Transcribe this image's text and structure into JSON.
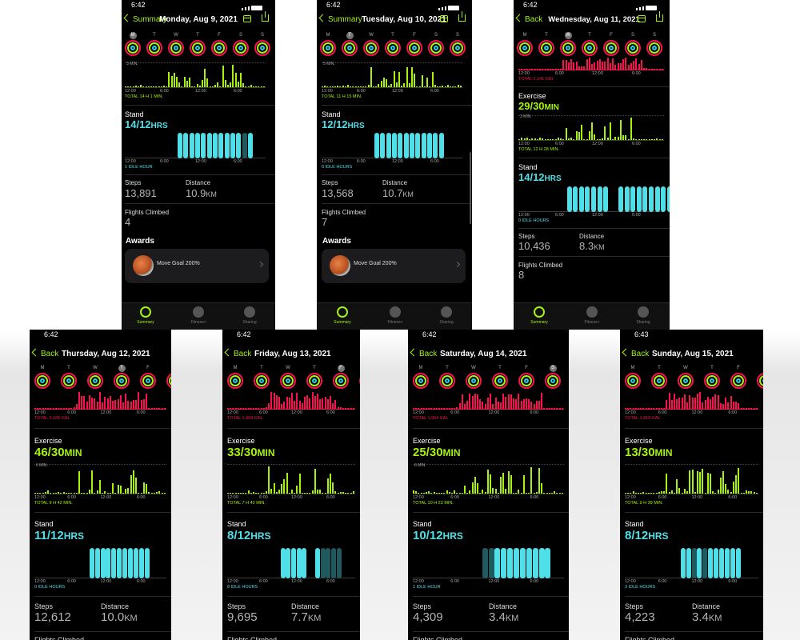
{
  "screens": [
    {
      "id": "mon",
      "time": "6:42",
      "back": "Summary",
      "date": "Monday, Aug 9, 2021",
      "move": null,
      "exercise": {
        "max": "3 MIN.",
        "total": "TOTAL 14 H 1 MIN."
      },
      "stand": {
        "label": "Stand",
        "value": "14/12",
        "unit": "HRS",
        "idle": "1 IDLE HOUR"
      },
      "steps": {
        "label": "Steps",
        "value": "13,891"
      },
      "distance": {
        "label": "Distance",
        "value": "10.9",
        "unit": "KM"
      },
      "flights": {
        "label": "Flights Climbed",
        "value": "4"
      },
      "awards": {
        "heading": "Awards",
        "item": "Move Goal 200%"
      },
      "tabs": [
        "Fitness+",
        "Sharing"
      ]
    },
    {
      "id": "tue",
      "time": "6:42",
      "back": "Summary",
      "date": "Tuesday, Aug 10, 2021",
      "move": null,
      "exercise": {
        "max": "5 MIN.",
        "total": "TOTAL 11 H 15 MIN."
      },
      "stand": {
        "label": "Stand",
        "value": "12/12",
        "unit": "HRS",
        "idle": "0 IDLE HOURS"
      },
      "steps": {
        "label": "Steps",
        "value": "13,568"
      },
      "distance": {
        "label": "Distance",
        "value": "10.7",
        "unit": "KM"
      },
      "flights": {
        "label": "Flights Climbed",
        "value": "7"
      },
      "awards": {
        "heading": "Awards",
        "item": "Move Goal 200%"
      },
      "tabs": [
        "Fitness+",
        "Sharing"
      ]
    },
    {
      "id": "wed",
      "time": "6:42",
      "back": "Back",
      "date": "Wednesday, Aug 11, 2021",
      "move": {
        "total": "TOTAL 2,141 CAL"
      },
      "exercise": {
        "label": "Exercise",
        "value": "29/30",
        "unit": "MIN",
        "max": "3 MIN.",
        "total": "TOTAL 12 H 28 MIN."
      },
      "stand": {
        "label": "Stand",
        "value": "14/12",
        "unit": "HRS",
        "idle": "0 IDLE HOURS"
      },
      "steps": {
        "label": "Steps",
        "value": "10,436"
      },
      "distance": {
        "label": "Distance",
        "value": "8.3",
        "unit": "KM"
      },
      "flights": {
        "label": "Flights Climbed",
        "value": "8"
      },
      "tabs": [
        "Fitness+",
        "Sharing"
      ]
    },
    {
      "id": "thu",
      "time": "6:42",
      "back": "Back",
      "date": "Thursday, Aug 12, 2021",
      "move": {
        "total": "TOTAL 2,185 CAL"
      },
      "exercise": {
        "label": "Exercise",
        "value": "46/30",
        "unit": "MIN",
        "max": "6 MIN.",
        "total": "TOTAL 9 H 42 MIN."
      },
      "stand": {
        "label": "Stand",
        "value": "11/12",
        "unit": "HRS",
        "idle": "0 IDLE HOURS"
      },
      "steps": {
        "label": "Steps",
        "value": "12,612"
      },
      "distance": {
        "label": "Distance",
        "value": "10.0",
        "unit": "KM"
      },
      "flights": {
        "label": "Flights Climbed"
      }
    },
    {
      "id": "fri",
      "time": "6:42",
      "back": "Back",
      "date": "Friday, Aug 13, 2021",
      "move": {
        "total": "TOTAL 1,983 CAL"
      },
      "exercise": {
        "label": "Exercise",
        "value": "33/30",
        "unit": "MIN",
        "max": "",
        "total": "TOTAL 7 H 42 MIN."
      },
      "stand": {
        "label": "Stand",
        "value": "8/12",
        "unit": "HRS",
        "idle": "8 IDLE HOURS"
      },
      "steps": {
        "label": "Steps",
        "value": "9,695"
      },
      "distance": {
        "label": "Distance",
        "value": "7.7",
        "unit": "KM"
      },
      "flights": {
        "label": "Flights Climbed"
      }
    },
    {
      "id": "sat",
      "time": "6:42",
      "back": "Back",
      "date": "Saturday, Aug 14, 2021",
      "move": {
        "total": "TOTAL 1,954 CAL"
      },
      "exercise": {
        "label": "Exercise",
        "value": "25/30",
        "unit": "MIN",
        "max": "6 MIN.",
        "total": "TOTAL 10 H 22 MIN."
      },
      "stand": {
        "label": "Stand",
        "value": "10/12",
        "unit": "HRS",
        "idle": "1 IDLE HOUR"
      },
      "steps": {
        "label": "Steps",
        "value": "4,309"
      },
      "distance": {
        "label": "Distance",
        "value": "3.4",
        "unit": "KM"
      },
      "flights": {
        "label": "Flights Climbed"
      }
    },
    {
      "id": "sun",
      "time": "6:43",
      "back": "Back",
      "date": "Sunday, Aug 15, 2021",
      "move": {
        "total": "TOTAL 1,818 CAL"
      },
      "exercise": {
        "label": "Exercise",
        "value": "13/30",
        "unit": "MIN",
        "max": "",
        "total": "TOTAL 9 H 39 MIN."
      },
      "stand": {
        "label": "Stand",
        "value": "8/12",
        "unit": "HRS",
        "idle": "3 IDLE HOURS"
      },
      "steps": {
        "label": "Steps",
        "value": "4,223"
      },
      "distance": {
        "label": "Distance",
        "value": "3.4",
        "unit": "KM"
      },
      "flights": {
        "label": "Flights Climbed"
      }
    }
  ],
  "axis_ticks": [
    "12:00",
    "6:00",
    "12:00",
    "6:00"
  ],
  "colors": {
    "move": "#fa114f",
    "exercise": "#a6f20d",
    "stand": "#4fdfe8",
    "stand_dim": "#1f5a5e"
  }
}
